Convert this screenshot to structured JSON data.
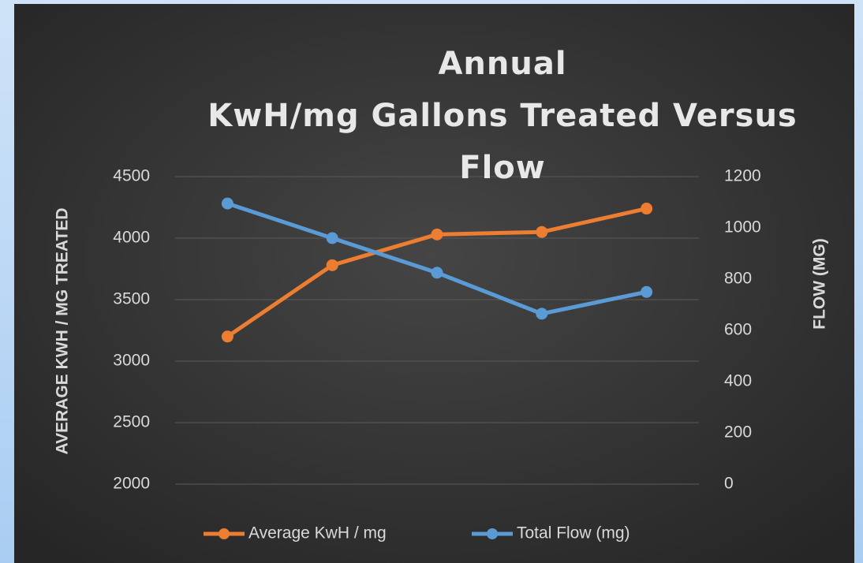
{
  "chart_data": {
    "type": "line",
    "title": "Annual\nKwH/mg Gallons Treated Versus\nFlow",
    "y_label": "AVERAGE KWH / MG TREATED",
    "y2_label": "FLOW (MG)",
    "categories": [
      null,
      null,
      null,
      null,
      null
    ],
    "series": [
      {
        "name": "Average KwH / mg",
        "color": "#ed7d31",
        "values": [
          3200,
          3780,
          4030,
          4050,
          4240
        ]
      },
      {
        "name": "Total Flow (mg)",
        "color": "#5b9bd5",
        "axis": "y2",
        "values": [
          1095,
          960,
          825,
          665,
          750
        ]
      }
    ],
    "ylim": [
      2000,
      4500
    ],
    "yticks": [
      2000,
      2500,
      3000,
      3500,
      4000,
      4500
    ],
    "y2lim": [
      0,
      1200
    ],
    "y2ticks": [
      0,
      200,
      400,
      600,
      800,
      1000,
      1200
    ],
    "grid": true,
    "legend": "bottom"
  }
}
